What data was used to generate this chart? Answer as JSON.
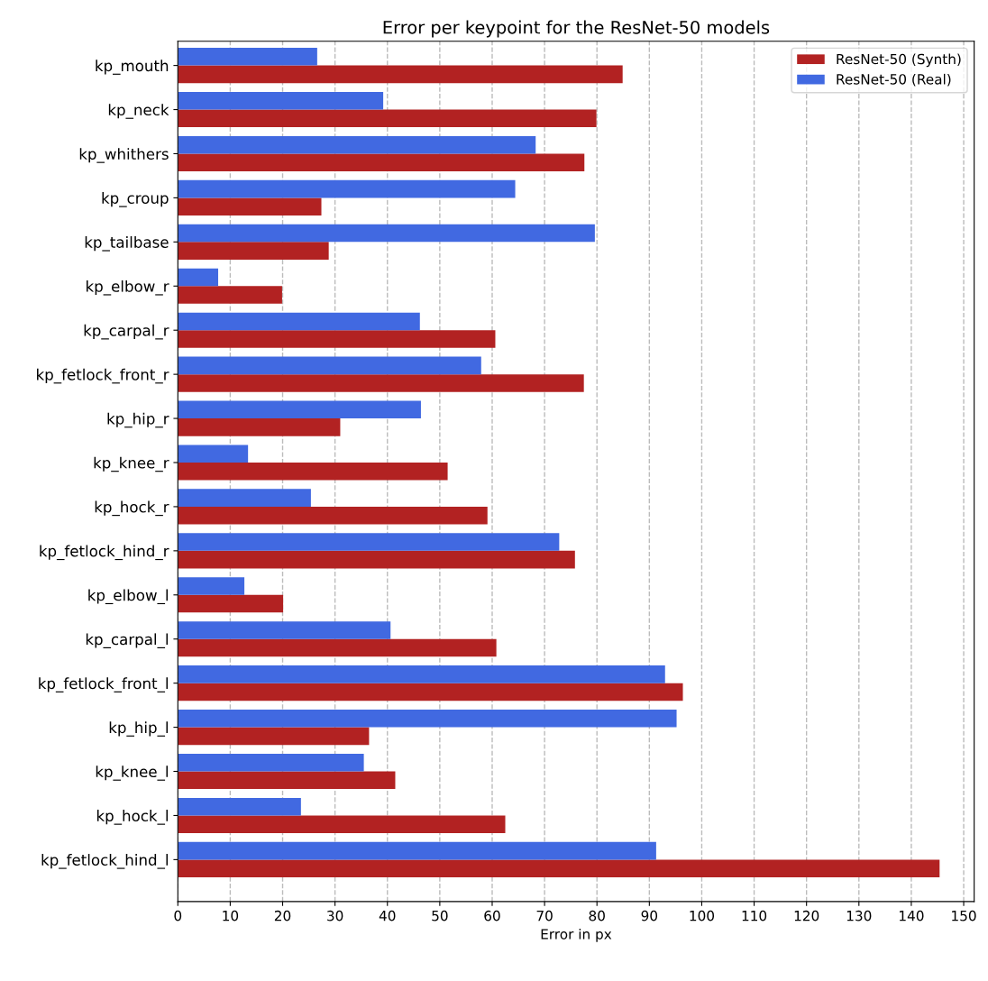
{
  "chart_data": {
    "type": "bar",
    "orientation": "horizontal",
    "title": "Error per keypoint for the ResNet-50 models",
    "xlabel": "Error in px",
    "categories": [
      "kp_mouth",
      "kp_neck",
      "kp_whithers",
      "kp_croup",
      "kp_tailbase",
      "kp_elbow_r",
      "kp_carpal_r",
      "kp_fetlock_front_r",
      "kp_hip_r",
      "kp_knee_r",
      "kp_hock_r",
      "kp_fetlock_hind_r",
      "kp_elbow_l",
      "kp_carpal_l",
      "kp_fetlock_front_l",
      "kp_hip_l",
      "kp_knee_l",
      "kp_hock_l",
      "kp_fetlock_hind_l"
    ],
    "series": [
      {
        "name": "ResNet-50 (Synth)",
        "color": "#b22222",
        "values": [
          84.9,
          79.9,
          77.6,
          27.4,
          28.8,
          19.9,
          60.6,
          77.5,
          31.0,
          51.5,
          59.1,
          75.8,
          20.1,
          60.8,
          96.4,
          36.5,
          41.5,
          62.5,
          145.4
        ]
      },
      {
        "name": "ResNet-50 (Real)",
        "color": "#4169e1",
        "values": [
          26.6,
          39.2,
          68.3,
          64.4,
          79.6,
          7.7,
          46.2,
          57.9,
          46.4,
          13.4,
          25.4,
          72.8,
          12.7,
          40.6,
          93.0,
          95.2,
          35.5,
          23.5,
          91.3
        ]
      }
    ],
    "xlim": [
      0,
      152
    ],
    "xticks": [
      0,
      10,
      20,
      30,
      40,
      50,
      60,
      70,
      80,
      90,
      100,
      110,
      120,
      130,
      140,
      150
    ],
    "grid": "x",
    "legend": "top right"
  }
}
